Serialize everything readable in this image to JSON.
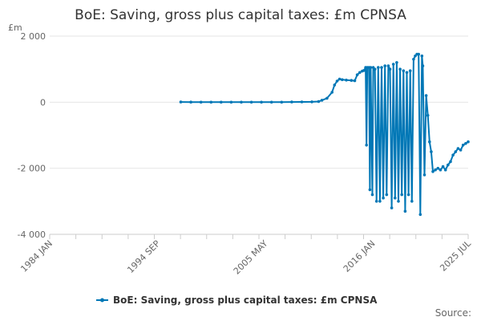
{
  "chart_data": {
    "type": "line",
    "title": "BoE: Saving, gross plus capital taxes: £m CPNSA",
    "unit_label": "£m",
    "ylim": [
      -4000,
      2000
    ],
    "y_ticks": [
      {
        "value": 2000,
        "label": "2 000"
      },
      {
        "value": 0,
        "label": "0"
      },
      {
        "value": -2000,
        "label": "-2 000"
      },
      {
        "value": -4000,
        "label": "-4 000"
      }
    ],
    "xlim": [
      "1984-01",
      "2025-07"
    ],
    "x_ticks": [
      {
        "date": "1984-01",
        "label": "1984 JAN"
      },
      {
        "date": "1994-09",
        "label": "1994 SEP"
      },
      {
        "date": "2005-05",
        "label": "2005 MAY"
      },
      {
        "date": "2016-01",
        "label": "2016 JAN"
      },
      {
        "date": "2025-07",
        "label": "2025 JUL"
      }
    ],
    "series": [
      {
        "name": "BoE: Saving, gross plus capital taxes: £m CPNSA",
        "color": "#0077b6",
        "points": [
          [
            "1997-01",
            5
          ],
          [
            "1998-01",
            3
          ],
          [
            "1999-01",
            2
          ],
          [
            "2000-01",
            2
          ],
          [
            "2001-01",
            2
          ],
          [
            "2002-01",
            2
          ],
          [
            "2003-01",
            2
          ],
          [
            "2004-01",
            2
          ],
          [
            "2005-01",
            2
          ],
          [
            "2006-01",
            2
          ],
          [
            "2007-01",
            2
          ],
          [
            "2008-01",
            5
          ],
          [
            "2009-01",
            8
          ],
          [
            "2010-01",
            10
          ],
          [
            "2010-09",
            20
          ],
          [
            "2011-01",
            60
          ],
          [
            "2011-07",
            120
          ],
          [
            "2012-01",
            300
          ],
          [
            "2012-04",
            520
          ],
          [
            "2012-07",
            640
          ],
          [
            "2012-10",
            700
          ],
          [
            "2013-01",
            680
          ],
          [
            "2013-06",
            670
          ],
          [
            "2013-12",
            660
          ],
          [
            "2014-04",
            650
          ],
          [
            "2014-07",
            830
          ],
          [
            "2014-10",
            900
          ],
          [
            "2015-01",
            940
          ],
          [
            "2015-03",
            960
          ],
          [
            "2015-05",
            1050
          ],
          [
            "2015-06",
            -1300
          ],
          [
            "2015-07",
            1050
          ],
          [
            "2015-09",
            1050
          ],
          [
            "2015-10",
            -2650
          ],
          [
            "2015-11",
            1050
          ],
          [
            "2016-01",
            -2800
          ],
          [
            "2016-02",
            1050
          ],
          [
            "2016-04",
            1000
          ],
          [
            "2016-06",
            -3000
          ],
          [
            "2016-08",
            1050
          ],
          [
            "2016-10",
            -3000
          ],
          [
            "2016-12",
            1050
          ],
          [
            "2017-02",
            -2900
          ],
          [
            "2017-04",
            1100
          ],
          [
            "2017-06",
            -2800
          ],
          [
            "2017-08",
            1100
          ],
          [
            "2017-10",
            1000
          ],
          [
            "2017-12",
            -3200
          ],
          [
            "2018-02",
            1150
          ],
          [
            "2018-04",
            -2900
          ],
          [
            "2018-06",
            1200
          ],
          [
            "2018-08",
            -3000
          ],
          [
            "2018-10",
            1000
          ],
          [
            "2018-12",
            -2800
          ],
          [
            "2019-02",
            950
          ],
          [
            "2019-04",
            -3300
          ],
          [
            "2019-06",
            900
          ],
          [
            "2019-08",
            -2800
          ],
          [
            "2019-10",
            950
          ],
          [
            "2019-12",
            -3000
          ],
          [
            "2020-02",
            1300
          ],
          [
            "2020-04",
            1400
          ],
          [
            "2020-06",
            1450
          ],
          [
            "2020-08",
            1450
          ],
          [
            "2020-10",
            -3400
          ],
          [
            "2020-12",
            1400
          ],
          [
            "2021-01",
            1100
          ],
          [
            "2021-03",
            -2200
          ],
          [
            "2021-05",
            200
          ],
          [
            "2021-07",
            -400
          ],
          [
            "2021-09",
            -1200
          ],
          [
            "2021-11",
            -1500
          ],
          [
            "2022-01",
            -2100
          ],
          [
            "2022-04",
            -2050
          ],
          [
            "2022-07",
            -2000
          ],
          [
            "2022-10",
            -2050
          ],
          [
            "2023-01",
            -1950
          ],
          [
            "2023-04",
            -2050
          ],
          [
            "2023-07",
            -1900
          ],
          [
            "2023-10",
            -1800
          ],
          [
            "2024-01",
            -1600
          ],
          [
            "2024-04",
            -1500
          ],
          [
            "2024-07",
            -1400
          ],
          [
            "2024-10",
            -1450
          ],
          [
            "2025-01",
            -1300
          ],
          [
            "2025-04",
            -1250
          ],
          [
            "2025-07",
            -1200
          ]
        ]
      }
    ],
    "legend": {
      "position": "bottom",
      "label": "BoE: Saving, gross plus capital taxes: £m CPNSA"
    },
    "source_label": "Source:",
    "grid": true
  }
}
